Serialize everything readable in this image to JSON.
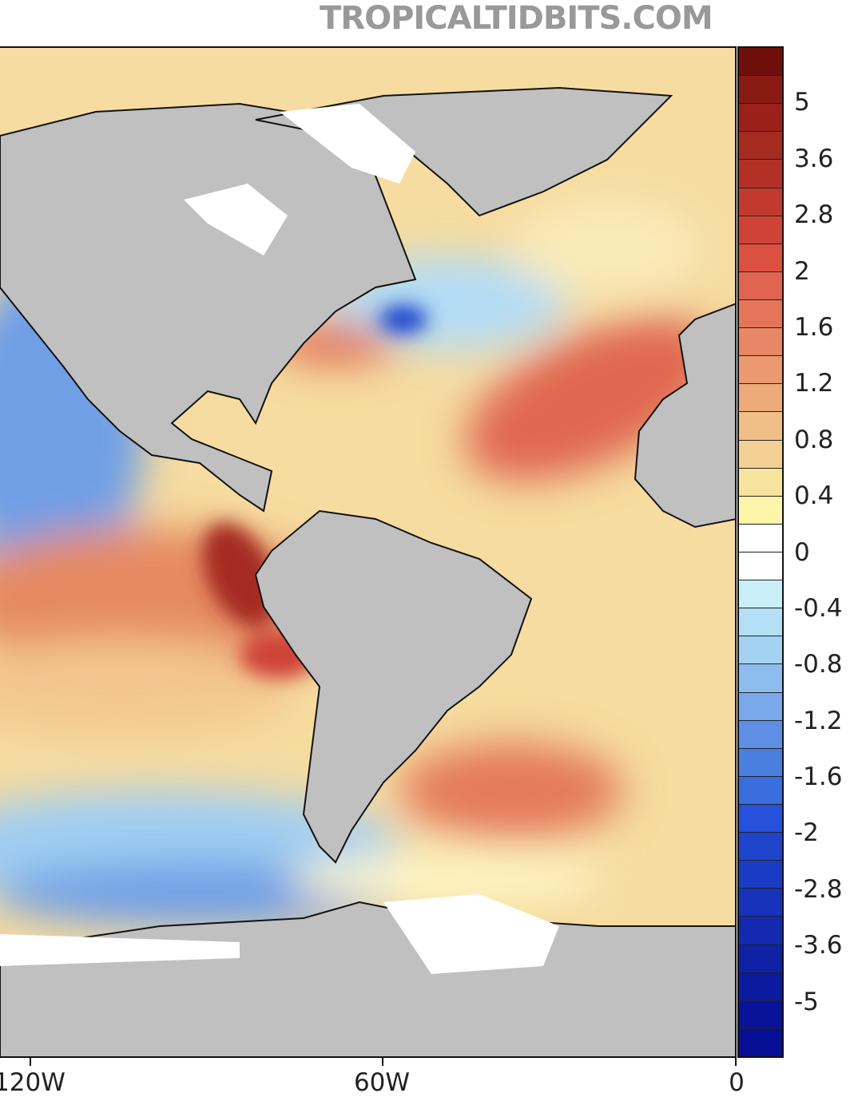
{
  "header": {
    "site": "TROPICALTIDBITS.COM"
  },
  "map": {
    "x_axis_labels": [
      "120W",
      "60W",
      "0"
    ],
    "land_color": "#c0c0c0",
    "ice_color": "#ffffff"
  },
  "colorbar": {
    "labels": [
      "5",
      "3.6",
      "2.8",
      "2",
      "1.6",
      "1.2",
      "0.8",
      "0.4",
      "0",
      "-0.4",
      "-0.8",
      "-1.2",
      "-1.6",
      "-2",
      "-2.8",
      "-3.6",
      "-5"
    ],
    "colors": [
      "#6e0f0a",
      "#8a1a14",
      "#9a2019",
      "#a52a20",
      "#b33026",
      "#c23a2e",
      "#cf4337",
      "#db5040",
      "#e06550",
      "#e57558",
      "#e88665",
      "#eb9970",
      "#edaa7a",
      "#f0bf88",
      "#f3d194",
      "#f7e39e",
      "#fdf5aa",
      "#ffffff",
      "#ffffff",
      "#c8eef8",
      "#b3e0f5",
      "#a3d2f2",
      "#8dbdee",
      "#79a8eb",
      "#5f8fe4",
      "#4a7fe0",
      "#3a6ede",
      "#2651dc",
      "#1e44cc",
      "#1a3cc4",
      "#1733bb",
      "#132ab0",
      "#0f22a5",
      "#0b1a9e",
      "#08139a",
      "#050e94"
    ]
  }
}
